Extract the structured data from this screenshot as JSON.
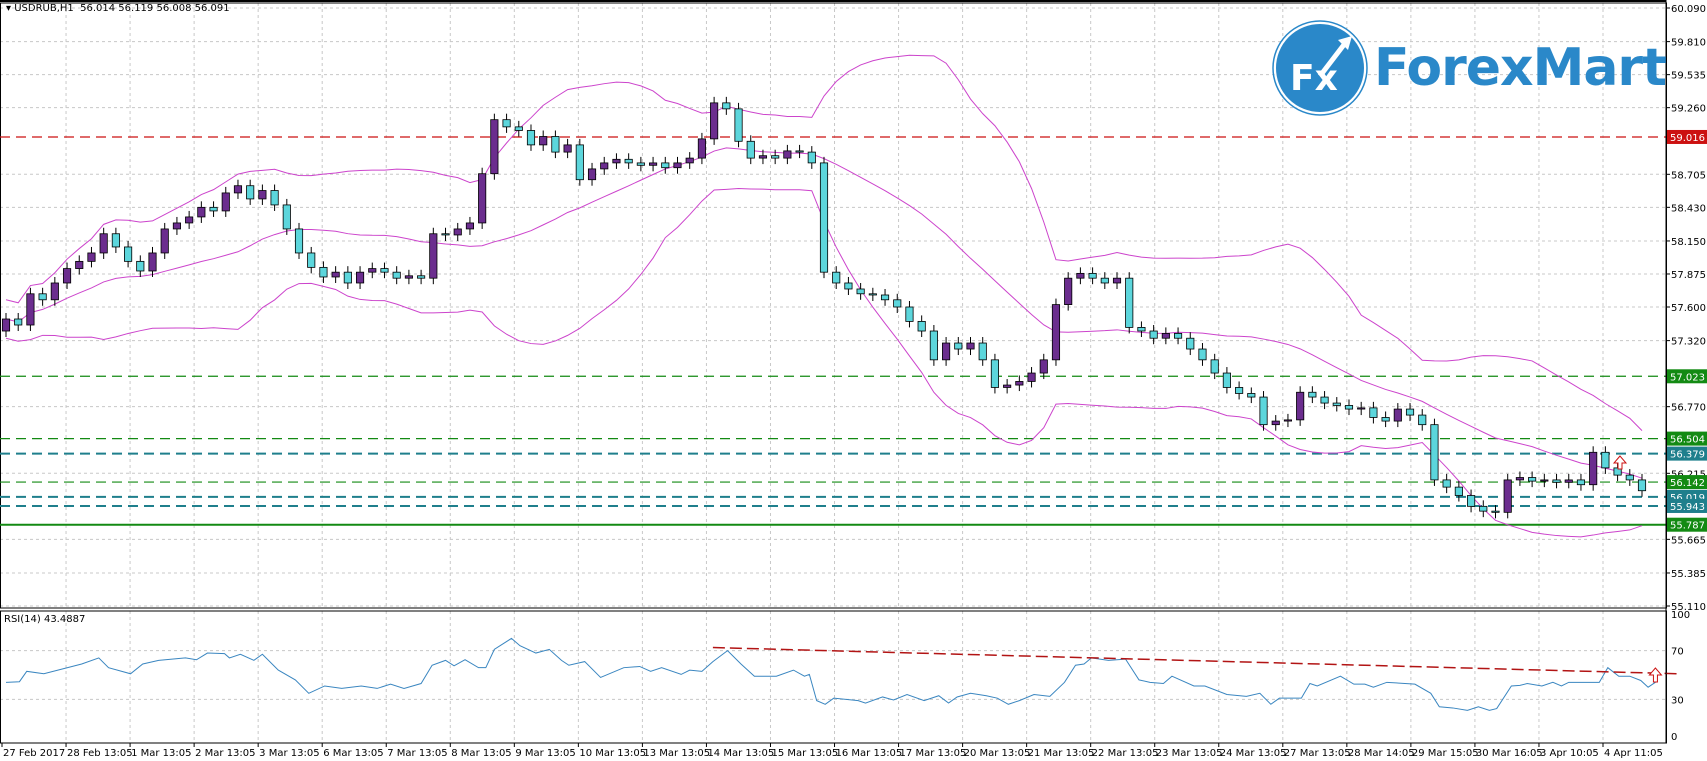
{
  "header": {
    "symbol": "USDRUB,H1",
    "ohlc": "56.014 56.119 56.008 56.091"
  },
  "logo": {
    "text": "ForexMart",
    "badge": "Fx"
  },
  "colors": {
    "bull": "#6b2d8e",
    "bear": "#5cd6dc",
    "bands": "#cc44cc",
    "grid": "#c8c8c8",
    "rsi": "#3a86c0",
    "red": "#cc1111",
    "green": "#138a13",
    "teal": "#1f7f8c",
    "logo": "#2a88c9"
  },
  "price_axis": {
    "max": 60.09,
    "min": 55.11,
    "labels": [
      "60.090",
      "59.810",
      "59.535",
      "59.260",
      "58.705",
      "58.430",
      "58.150",
      "57.875",
      "57.600",
      "57.320",
      "56.770",
      "56.215",
      "55.665",
      "55.385",
      "55.110"
    ]
  },
  "levels": [
    {
      "price": 59.016,
      "label": "59.016",
      "kind": "red"
    },
    {
      "price": 57.023,
      "label": "57.023",
      "kind": "green"
    },
    {
      "price": 56.504,
      "label": "56.504",
      "kind": "green"
    },
    {
      "price": 56.379,
      "label": "56.379",
      "kind": "teal"
    },
    {
      "price": 56.142,
      "label": "56.142",
      "kind": "green"
    },
    {
      "price": 56.019,
      "label": "56.019",
      "kind": "teal"
    },
    {
      "price": 55.943,
      "label": "55.943",
      "kind": "teal"
    },
    {
      "price": 55.787,
      "label": "55.787",
      "kind": "green-solid"
    }
  ],
  "candles": {
    "first_open": 57.4,
    "closes": [
      57.5,
      57.45,
      57.71,
      57.66,
      57.8,
      57.92,
      57.98,
      58.05,
      58.21,
      58.1,
      57.98,
      57.9,
      58.05,
      58.25,
      58.3,
      58.35,
      58.43,
      58.4,
      58.55,
      58.61,
      58.5,
      58.57,
      58.45,
      58.25,
      58.05,
      57.93,
      57.85,
      57.89,
      57.8,
      57.89,
      57.92,
      57.89,
      57.84,
      57.86,
      57.84,
      58.21,
      58.2,
      58.25,
      58.3,
      58.71,
      59.16,
      59.1,
      59.07,
      58.95,
      59.02,
      58.89,
      58.95,
      58.66,
      58.75,
      58.8,
      58.83,
      58.8,
      58.78,
      58.8,
      58.76,
      58.8,
      58.84,
      59.0,
      59.3,
      59.25,
      58.98,
      58.84,
      58.86,
      58.84,
      58.9,
      58.89,
      58.8,
      57.89,
      57.8,
      57.75,
      57.71,
      57.7,
      57.66,
      57.6,
      57.48,
      57.4,
      57.16,
      57.3,
      57.25,
      57.3,
      57.16,
      56.93,
      56.95,
      56.98,
      57.05,
      57.16,
      57.62,
      57.84,
      57.88,
      57.84,
      57.8,
      57.84,
      57.43,
      57.4,
      57.34,
      57.38,
      57.34,
      57.25,
      57.16,
      57.05,
      56.93,
      56.88,
      56.85,
      56.62,
      56.65,
      56.66,
      56.89,
      56.85,
      56.8,
      56.78,
      56.75,
      56.76,
      56.68,
      56.65,
      56.75,
      56.7,
      56.62,
      56.16,
      56.1,
      56.03,
      55.94,
      55.9,
      55.89,
      56.16,
      56.18,
      56.15,
      56.16,
      56.14,
      56.16,
      56.12,
      56.39,
      56.26,
      56.2,
      56.16,
      56.07
    ]
  },
  "bollinger": {
    "period": 20,
    "deviation": 2
  },
  "rsi": {
    "title": "RSI(14) 43.4887",
    "labels": [
      "100",
      "70",
      "30",
      "0"
    ],
    "label_values": [
      100,
      70,
      30,
      0
    ],
    "points": [
      [
        0,
        44
      ],
      [
        1.1,
        44.5
      ],
      [
        1.7,
        53
      ],
      [
        3.1,
        51
      ],
      [
        6.2,
        59
      ],
      [
        7.6,
        64
      ],
      [
        8.4,
        56
      ],
      [
        10.2,
        51
      ],
      [
        11.2,
        59
      ],
      [
        12.5,
        62
      ],
      [
        14.7,
        64
      ],
      [
        15.6,
        62.5
      ],
      [
        16.5,
        68
      ],
      [
        17.9,
        67.5
      ],
      [
        18.3,
        64
      ],
      [
        19.2,
        67
      ],
      [
        20.3,
        62
      ],
      [
        21,
        67
      ],
      [
        22.3,
        54
      ],
      [
        23.7,
        46
      ],
      [
        24.8,
        35
      ],
      [
        26.1,
        41
      ],
      [
        27.5,
        39
      ],
      [
        29.1,
        41
      ],
      [
        30.4,
        39
      ],
      [
        31.5,
        42.5
      ],
      [
        32.6,
        39
      ],
      [
        34,
        43
      ],
      [
        34.9,
        58
      ],
      [
        36,
        62
      ],
      [
        36.7,
        57.5
      ],
      [
        37.6,
        62.5
      ],
      [
        38.7,
        56
      ],
      [
        39.3,
        56
      ],
      [
        40,
        71
      ],
      [
        41.4,
        80
      ],
      [
        42.1,
        74
      ],
      [
        43.4,
        68
      ],
      [
        44.5,
        71
      ],
      [
        45.5,
        62
      ],
      [
        46.1,
        58
      ],
      [
        47.4,
        61
      ],
      [
        48.7,
        48
      ],
      [
        50.6,
        56
      ],
      [
        51.9,
        57
      ],
      [
        52.8,
        53
      ],
      [
        53.7,
        56
      ],
      [
        55.3,
        50.5
      ],
      [
        56,
        54
      ],
      [
        57,
        53
      ],
      [
        57.9,
        61
      ],
      [
        59.1,
        70
      ],
      [
        60.2,
        59
      ],
      [
        61.3,
        49
      ],
      [
        63.1,
        49
      ],
      [
        64.5,
        54
      ],
      [
        65.4,
        49
      ],
      [
        65.8,
        50.5
      ],
      [
        66.4,
        29
      ],
      [
        67.1,
        26
      ],
      [
        67.8,
        31
      ],
      [
        69.8,
        29
      ],
      [
        70.4,
        27
      ],
      [
        71.8,
        32
      ],
      [
        72.7,
        29.5
      ],
      [
        73.8,
        34
      ],
      [
        75.2,
        29
      ],
      [
        76.4,
        33
      ],
      [
        77.2,
        27
      ],
      [
        77.9,
        32
      ],
      [
        79,
        35
      ],
      [
        80.3,
        33
      ],
      [
        81.2,
        31
      ],
      [
        82.1,
        26
      ],
      [
        83,
        29
      ],
      [
        84.2,
        34
      ],
      [
        85.5,
        32.5
      ],
      [
        86.7,
        44
      ],
      [
        87.6,
        58
      ],
      [
        88.3,
        59
      ],
      [
        88.9,
        64
      ],
      [
        90.3,
        62
      ],
      [
        91.7,
        63
      ],
      [
        92.8,
        46
      ],
      [
        93.7,
        44
      ],
      [
        94.8,
        43
      ],
      [
        95.5,
        49
      ],
      [
        97.3,
        41
      ],
      [
        98.2,
        41
      ],
      [
        100,
        34
      ],
      [
        101.6,
        32.5
      ],
      [
        102.7,
        35
      ],
      [
        103.6,
        26
      ],
      [
        104.3,
        31
      ],
      [
        106.1,
        31
      ],
      [
        106.8,
        43
      ],
      [
        107.4,
        41
      ],
      [
        109.3,
        49
      ],
      [
        110.4,
        42.5
      ],
      [
        111.3,
        42.5
      ],
      [
        112,
        40
      ],
      [
        113.1,
        44
      ],
      [
        115.4,
        42.5
      ],
      [
        116.7,
        35
      ],
      [
        117.4,
        24
      ],
      [
        118.5,
        23
      ],
      [
        119.7,
        21
      ],
      [
        120.6,
        24
      ],
      [
        121.5,
        21
      ],
      [
        122.1,
        22.5
      ],
      [
        123.3,
        41
      ],
      [
        124,
        41.5
      ],
      [
        124.6,
        43
      ],
      [
        125.8,
        41
      ],
      [
        126.7,
        44
      ],
      [
        127.4,
        41
      ],
      [
        128,
        44
      ],
      [
        130.5,
        44
      ],
      [
        131.2,
        56
      ],
      [
        132.1,
        49
      ],
      [
        133,
        49
      ],
      [
        133.9,
        45.5
      ],
      [
        134.5,
        40
      ],
      [
        135.1,
        44
      ]
    ],
    "trendline": [
      [
        57.9,
        72.5
      ],
      [
        137,
        51
      ]
    ]
  },
  "time_axis": [
    "27 Feb 2017",
    "28 Feb 13:05",
    "1 Mar 13:05",
    "2 Mar 13:05",
    "3 Mar 13:05",
    "6 Mar 13:05",
    "7 Mar 13:05",
    "8 Mar 13:05",
    "9 Mar 13:05",
    "10 Mar 13:05",
    "13 Mar 13:05",
    "14 Mar 13:05",
    "15 Mar 13:05",
    "16 Mar 13:05",
    "17 Mar 13:05",
    "20 Mar 13:05",
    "21 Mar 13:05",
    "22 Mar 13:05",
    "23 Mar 13:05",
    "24 Mar 13:05",
    "27 Mar 13:05",
    "28 Mar 14:05",
    "29 Mar 15:05",
    "30 Mar 16:05",
    "3 Apr 10:05",
    "4 Apr 11:05"
  ]
}
